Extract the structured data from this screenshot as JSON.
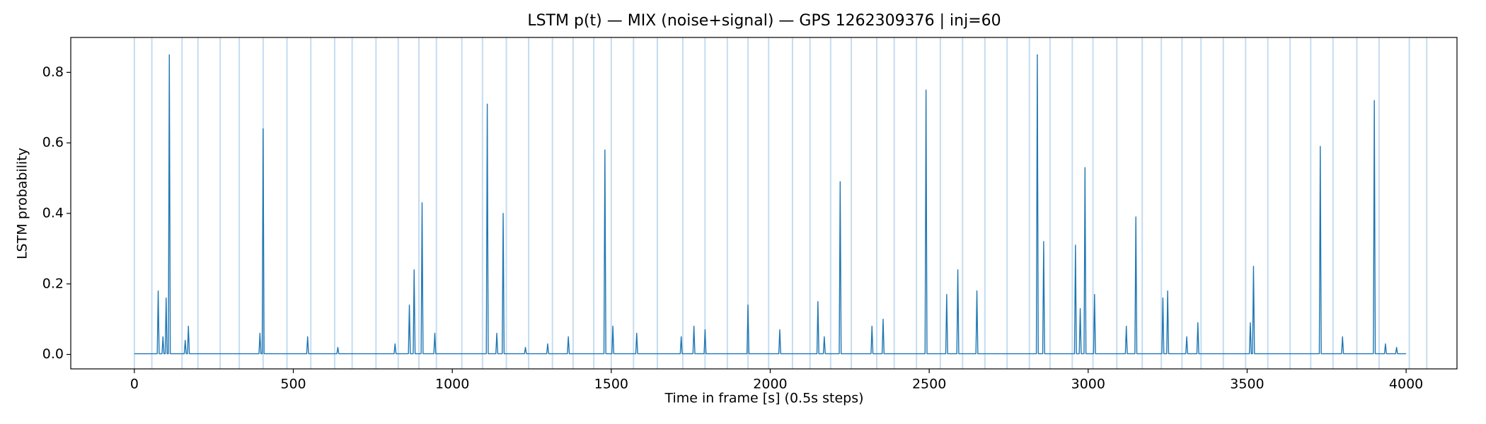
{
  "chart_data": {
    "type": "line",
    "title": "LSTM p(t) — MIX (noise+signal) — GPS 1262309376 | inj=60",
    "x_label": "Time in frame [s] (0.5s steps)",
    "y_label": "LSTM probability",
    "xlim": [
      -200,
      4160
    ],
    "ylim": [
      -0.041,
      0.899
    ],
    "xticks": [
      0,
      500,
      1000,
      1500,
      2000,
      2500,
      3000,
      3500,
      4000
    ],
    "yticks": [
      {
        "value": 0,
        "label": "0.0"
      },
      {
        "value": 0.2,
        "label": "0.2"
      },
      {
        "value": 0.4,
        "label": "0.4"
      },
      {
        "value": 0.6,
        "label": "0.6"
      },
      {
        "value": 0.8,
        "label": "0.8"
      }
    ],
    "injection_color": "#9ec5e8",
    "injections": [
      0,
      55,
      150,
      200,
      270,
      330,
      405,
      480,
      555,
      630,
      685,
      760,
      830,
      895,
      950,
      1030,
      1095,
      1170,
      1240,
      1315,
      1380,
      1445,
      1500,
      1570,
      1645,
      1725,
      1795,
      1865,
      1930,
      1995,
      2070,
      2125,
      2190,
      2255,
      2335,
      2390,
      2460,
      2535,
      2605,
      2675,
      2745,
      2815,
      2880,
      2950,
      3015,
      3090,
      3170,
      3230,
      3295,
      3355,
      3425,
      3495,
      3565,
      3635,
      3700,
      3770,
      3845,
      3915,
      4010,
      4065
    ],
    "x": [
      0,
      72,
      75,
      78,
      87,
      90,
      93,
      97,
      100,
      103,
      107,
      110,
      113,
      157,
      160,
      163,
      167,
      170,
      173,
      392,
      395,
      398,
      402,
      405,
      408,
      542,
      545,
      548,
      637,
      640,
      643,
      817,
      820,
      823,
      862,
      865,
      868,
      877,
      880,
      883,
      902,
      905,
      908,
      942,
      945,
      948,
      1107,
      1110,
      1113,
      1137,
      1140,
      1143,
      1157,
      1160,
      1163,
      1227,
      1230,
      1233,
      1297,
      1300,
      1303,
      1362,
      1365,
      1368,
      1477,
      1480,
      1483,
      1502,
      1505,
      1508,
      1577,
      1580,
      1583,
      1717,
      1720,
      1723,
      1757,
      1760,
      1763,
      1792,
      1795,
      1798,
      1927,
      1930,
      1933,
      2027,
      2030,
      2033,
      2147,
      2150,
      2153,
      2167,
      2170,
      2173,
      2217,
      2220,
      2223,
      2317,
      2320,
      2323,
      2352,
      2355,
      2358,
      2487,
      2490,
      2493,
      2552,
      2555,
      2558,
      2587,
      2590,
      2593,
      2647,
      2650,
      2653,
      2837,
      2840,
      2843,
      2857,
      2860,
      2863,
      2957,
      2960,
      2963,
      2972,
      2975,
      2978,
      2987,
      2990,
      2993,
      3017,
      3020,
      3023,
      3117,
      3120,
      3123,
      3147,
      3150,
      3153,
      3232,
      3235,
      3238,
      3247,
      3250,
      3253,
      3307,
      3310,
      3313,
      3342,
      3345,
      3348,
      3507,
      3510,
      3513,
      3517,
      3520,
      3523,
      3727,
      3730,
      3733,
      3797,
      3800,
      3803,
      3897,
      3900,
      3903,
      3932,
      3935,
      3938,
      3967,
      3970,
      3973,
      4000
    ],
    "series": [
      {
        "color": "#1f77b4",
        "values": [
          0.002,
          0.002,
          0.18,
          0.002,
          0.002,
          0.05,
          0.002,
          0.002,
          0.16,
          0.002,
          0.002,
          0.85,
          0.002,
          0.002,
          0.04,
          0.002,
          0.002,
          0.08,
          0.002,
          0.002,
          0.06,
          0.002,
          0.002,
          0.64,
          0.002,
          0.002,
          0.05,
          0.002,
          0.002,
          0.02,
          0.002,
          0.002,
          0.03,
          0.002,
          0.002,
          0.14,
          0.002,
          0.002,
          0.24,
          0.002,
          0.002,
          0.43,
          0.002,
          0.002,
          0.06,
          0.002,
          0.002,
          0.71,
          0.002,
          0.002,
          0.06,
          0.002,
          0.002,
          0.4,
          0.002,
          0.002,
          0.02,
          0.002,
          0.002,
          0.03,
          0.002,
          0.002,
          0.05,
          0.002,
          0.002,
          0.58,
          0.002,
          0.002,
          0.08,
          0.002,
          0.002,
          0.06,
          0.002,
          0.002,
          0.05,
          0.002,
          0.002,
          0.08,
          0.002,
          0.002,
          0.07,
          0.002,
          0.002,
          0.14,
          0.002,
          0.002,
          0.07,
          0.002,
          0.002,
          0.15,
          0.002,
          0.002,
          0.05,
          0.002,
          0.002,
          0.49,
          0.002,
          0.002,
          0.08,
          0.002,
          0.002,
          0.1,
          0.002,
          0.002,
          0.75,
          0.002,
          0.002,
          0.17,
          0.002,
          0.002,
          0.24,
          0.002,
          0.002,
          0.18,
          0.002,
          0.002,
          0.85,
          0.002,
          0.002,
          0.32,
          0.002,
          0.002,
          0.31,
          0.002,
          0.002,
          0.13,
          0.002,
          0.002,
          0.53,
          0.002,
          0.002,
          0.17,
          0.002,
          0.002,
          0.08,
          0.002,
          0.002,
          0.39,
          0.002,
          0.002,
          0.16,
          0.002,
          0.002,
          0.18,
          0.002,
          0.002,
          0.05,
          0.002,
          0.002,
          0.09,
          0.002,
          0.002,
          0.09,
          0.002,
          0.002,
          0.25,
          0.002,
          0.002,
          0.59,
          0.002,
          0.002,
          0.05,
          0.002,
          0.002,
          0.72,
          0.002,
          0.002,
          0.03,
          0.002,
          0.002,
          0.02,
          0.002,
          0.002
        ]
      }
    ]
  }
}
